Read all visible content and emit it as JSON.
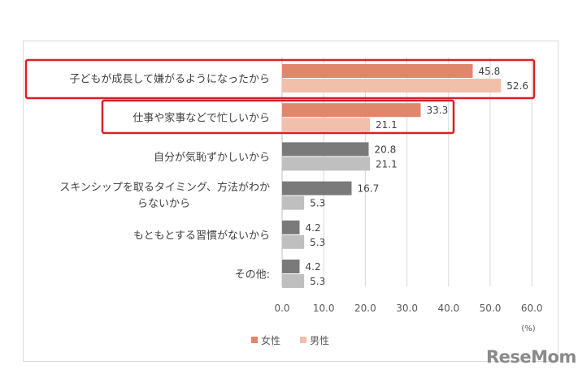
{
  "chart_data": {
    "type": "bar",
    "orientation": "horizontal",
    "categories": [
      "子どもが成長して嫌がるようになったから",
      "仕事や家事などで忙しいから",
      "自分が気恥ずかしいから",
      "スキンシップを取るタイミング、方法がわからないから",
      "もともとする習慣がないから",
      "その他:"
    ],
    "category_lines": [
      [
        "子どもが成長して嫌がるようになったから"
      ],
      [
        "仕事や家事などで忙しいから"
      ],
      [
        "自分が気恥ずかしいから"
      ],
      [
        "スキンシップを取るタイミング、方法がわか",
        "らないから"
      ],
      [
        "もともとする習慣がないから"
      ],
      [
        "その他:"
      ]
    ],
    "value_labels": [
      [
        "45.8",
        "52.6"
      ],
      [
        "33.3",
        "21.1"
      ],
      [
        "20.8",
        "21.1"
      ],
      [
        "16.7",
        "5.3"
      ],
      [
        "4.2",
        "5.3"
      ],
      [
        "4.2",
        "5.3"
      ]
    ],
    "series": [
      {
        "name": "女性",
        "values": [
          45.8,
          33.3,
          20.8,
          16.7,
          4.2,
          4.2
        ]
      },
      {
        "name": "男性",
        "values": [
          52.6,
          21.1,
          21.1,
          5.3,
          5.3,
          5.3
        ]
      }
    ],
    "colors": {
      "female_highlight": "#e0866a",
      "male_highlight": "#f2bfaa",
      "female_normal": "#7a7a7a",
      "male_normal": "#bfbfbf",
      "highlight_box": "#d92027",
      "grid": "#d9d9d9"
    },
    "highlighted_categories": [
      0,
      1
    ],
    "xlim": [
      0,
      60
    ],
    "xticks": [
      "0.0",
      "10.0",
      "20.0",
      "30.0",
      "40.0",
      "50.0",
      "60.0"
    ],
    "xunit": "(%)",
    "grid": true,
    "legend_position": "bottom-left"
  },
  "watermark": "ReseMom"
}
